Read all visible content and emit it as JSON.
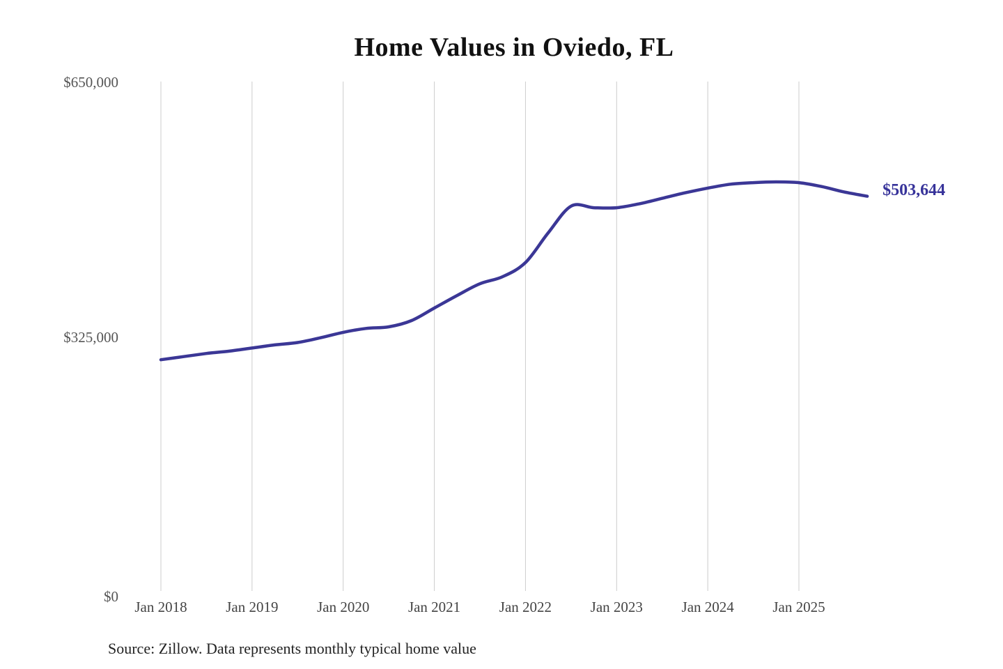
{
  "title": "Home Values in Oviedo, FL",
  "source_note": "Source: Zillow. Data represents monthly typical home value",
  "colors": {
    "background": "#ffffff",
    "line": "#3B3796",
    "end_label": "#37339A",
    "gridline": "#cccccc",
    "y_tick_text": "#555555",
    "x_tick_text": "#444444",
    "title_text": "#111111",
    "source_text": "#222222"
  },
  "chart_data": {
    "type": "line",
    "title": "Home Values in Oviedo, FL",
    "unit": "USD",
    "grid": "vertical-only",
    "legend": "none",
    "ylim": [
      0,
      650000
    ],
    "y_ticks": [
      {
        "label": "$650,000",
        "value": 650000
      },
      {
        "label": "$325,000",
        "value": 325000
      },
      {
        "label": "$0",
        "value": 0
      }
    ],
    "x_labels": [
      "Jan 2018",
      "Jan 2019",
      "Jan 2020",
      "Jan 2021",
      "Jan 2022",
      "Jan 2023",
      "Jan 2024",
      "Jan 2025"
    ],
    "series": [
      {
        "name": "Monthly typical home value",
        "end_label": "$503,644",
        "end_value": 503644,
        "points": [
          {
            "date": "2018-01",
            "value": 295000
          },
          {
            "date": "2018-04",
            "value": 299000
          },
          {
            "date": "2018-07",
            "value": 303000
          },
          {
            "date": "2018-10",
            "value": 306000
          },
          {
            "date": "2019-01",
            "value": 310000
          },
          {
            "date": "2019-04",
            "value": 314000
          },
          {
            "date": "2019-07",
            "value": 317000
          },
          {
            "date": "2019-10",
            "value": 323000
          },
          {
            "date": "2020-01",
            "value": 330000
          },
          {
            "date": "2020-04",
            "value": 335000
          },
          {
            "date": "2020-07",
            "value": 337000
          },
          {
            "date": "2020-10",
            "value": 345000
          },
          {
            "date": "2021-01",
            "value": 361000
          },
          {
            "date": "2021-04",
            "value": 377000
          },
          {
            "date": "2021-07",
            "value": 392000
          },
          {
            "date": "2021-10",
            "value": 401000
          },
          {
            "date": "2022-01",
            "value": 419000
          },
          {
            "date": "2022-04",
            "value": 457000
          },
          {
            "date": "2022-07",
            "value": 491000
          },
          {
            "date": "2022-10",
            "value": 489000
          },
          {
            "date": "2023-01",
            "value": 489000
          },
          {
            "date": "2023-04",
            "value": 494000
          },
          {
            "date": "2023-07",
            "value": 501000
          },
          {
            "date": "2023-10",
            "value": 508000
          },
          {
            "date": "2024-01",
            "value": 514000
          },
          {
            "date": "2024-04",
            "value": 519000
          },
          {
            "date": "2024-07",
            "value": 521000
          },
          {
            "date": "2024-10",
            "value": 522000
          },
          {
            "date": "2025-01",
            "value": 521000
          },
          {
            "date": "2025-04",
            "value": 516000
          },
          {
            "date": "2025-07",
            "value": 509000
          },
          {
            "date": "2025-10",
            "value": 503644
          }
        ]
      }
    ],
    "source": "Source: Zillow. Data represents monthly typical home value"
  }
}
